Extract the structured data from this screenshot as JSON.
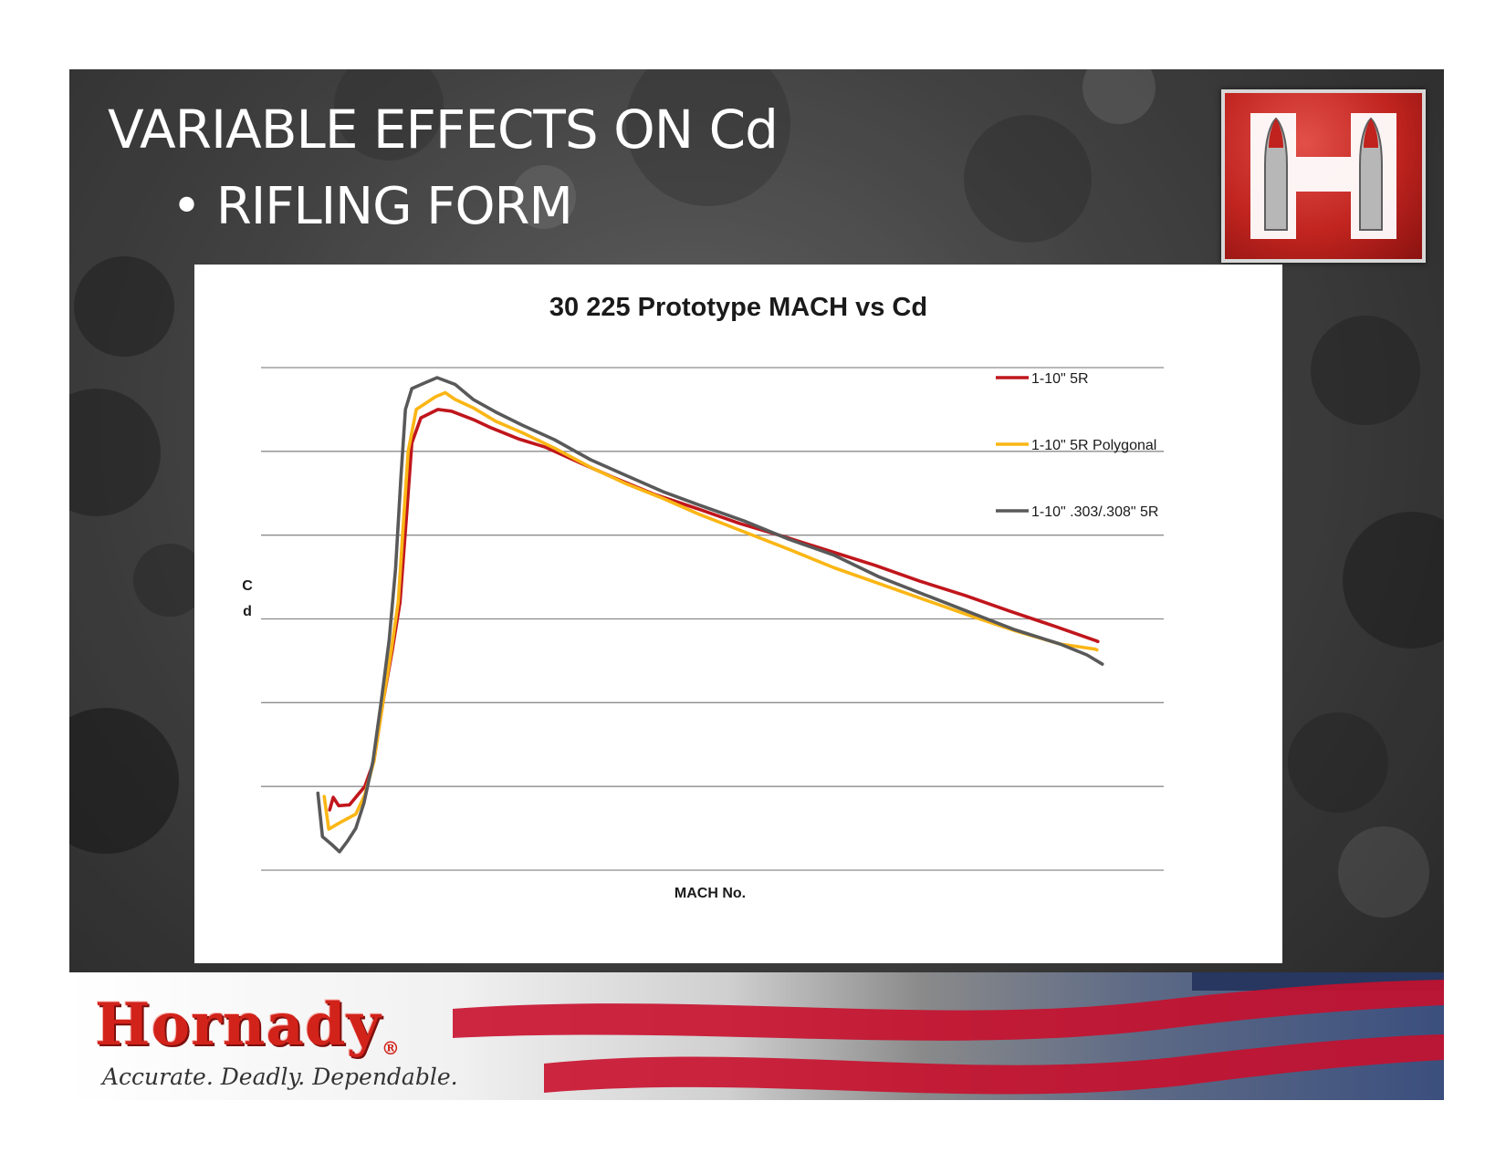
{
  "slide": {
    "title": "VARIABLE EFFECTS ON Cd",
    "bullet": "• RIFLING FORM"
  },
  "branding": {
    "logo_icon": "hornady-h-bullets-icon",
    "brand_name": "Hornady",
    "registered": "®",
    "tagline": "Accurate. Deadly. Dependable.",
    "flag_icon": "american-flag-icon"
  },
  "colors": {
    "brand_red": "#d2231b",
    "series_red": "#c0161c",
    "series_yellow": "#fbb615",
    "series_gray": "#595959",
    "gridline": "#8c8c8c"
  },
  "chart_data": {
    "type": "line",
    "title": "30 225 Prototype MACH vs Cd",
    "xlabel": "MACH No.",
    "ylabel": "Cd",
    "ylim": [
      0,
      6
    ],
    "yticks": [
      0,
      1,
      2,
      3,
      4,
      5,
      6
    ],
    "xlim": [
      0,
      100
    ],
    "grid": true,
    "legend_position": "right",
    "series": [
      {
        "name": "1-10\" 5R",
        "color": "#c0161c",
        "points": [
          [
            7.6,
            0.72
          ],
          [
            8.0,
            0.87
          ],
          [
            8.6,
            0.77
          ],
          [
            9.8,
            0.78
          ],
          [
            11.5,
            1.0
          ],
          [
            12.5,
            1.3
          ],
          [
            13.5,
            2.0
          ],
          [
            14.5,
            2.6
          ],
          [
            15.4,
            3.2
          ],
          [
            16.1,
            4.2
          ],
          [
            16.7,
            5.1
          ],
          [
            17.7,
            5.4
          ],
          [
            19.6,
            5.5
          ],
          [
            21.1,
            5.48
          ],
          [
            23.5,
            5.38
          ],
          [
            25.5,
            5.28
          ],
          [
            28.5,
            5.15
          ],
          [
            31.5,
            5.05
          ],
          [
            35.0,
            4.88
          ],
          [
            39.0,
            4.69
          ],
          [
            43.5,
            4.49
          ],
          [
            48.5,
            4.31
          ],
          [
            53.0,
            4.14
          ],
          [
            58.0,
            3.98
          ],
          [
            63.0,
            3.81
          ],
          [
            68.0,
            3.64
          ],
          [
            73.0,
            3.45
          ],
          [
            78.0,
            3.28
          ],
          [
            83.0,
            3.09
          ],
          [
            88.0,
            2.91
          ],
          [
            92.5,
            2.74
          ],
          [
            92.7,
            2.73
          ]
        ]
      },
      {
        "name": "1-10\" 5R Polygonal",
        "color": "#fbb615",
        "points": [
          [
            7.0,
            0.88
          ],
          [
            7.5,
            0.49
          ],
          [
            8.6,
            0.56
          ],
          [
            10.5,
            0.67
          ],
          [
            11.5,
            0.9
          ],
          [
            12.5,
            1.3
          ],
          [
            13.5,
            2.0
          ],
          [
            14.4,
            2.6
          ],
          [
            15.2,
            3.2
          ],
          [
            15.8,
            4.2
          ],
          [
            16.3,
            5.0
          ],
          [
            17.2,
            5.5
          ],
          [
            19.3,
            5.65
          ],
          [
            20.4,
            5.7
          ],
          [
            21.5,
            5.62
          ],
          [
            23.5,
            5.52
          ],
          [
            26.0,
            5.36
          ],
          [
            29.0,
            5.22
          ],
          [
            32.5,
            5.04
          ],
          [
            36.5,
            4.81
          ],
          [
            40.5,
            4.61
          ],
          [
            44.5,
            4.44
          ],
          [
            48.5,
            4.25
          ],
          [
            53.5,
            4.04
          ],
          [
            58.5,
            3.83
          ],
          [
            63.5,
            3.61
          ],
          [
            68.5,
            3.42
          ],
          [
            73.5,
            3.23
          ],
          [
            78.5,
            3.04
          ],
          [
            83.5,
            2.86
          ],
          [
            88.5,
            2.7
          ],
          [
            92.4,
            2.64
          ],
          [
            92.6,
            2.63
          ]
        ]
      },
      {
        "name": "1-10\" .303/.308\" 5R",
        "color": "#595959",
        "points": [
          [
            6.3,
            0.92
          ],
          [
            6.8,
            0.4
          ],
          [
            7.8,
            0.31
          ],
          [
            8.7,
            0.22
          ],
          [
            9.6,
            0.35
          ],
          [
            10.5,
            0.5
          ],
          [
            11.4,
            0.8
          ],
          [
            12.4,
            1.3
          ],
          [
            13.3,
            2.0
          ],
          [
            14.2,
            2.75
          ],
          [
            14.9,
            3.6
          ],
          [
            15.5,
            4.7
          ],
          [
            16.0,
            5.5
          ],
          [
            16.7,
            5.75
          ],
          [
            18.2,
            5.82
          ],
          [
            19.5,
            5.88
          ],
          [
            21.5,
            5.8
          ],
          [
            23.5,
            5.62
          ],
          [
            26.0,
            5.47
          ],
          [
            29.0,
            5.31
          ],
          [
            32.5,
            5.14
          ],
          [
            36.5,
            4.9
          ],
          [
            40.5,
            4.71
          ],
          [
            44.5,
            4.52
          ],
          [
            48.5,
            4.36
          ],
          [
            53.5,
            4.17
          ],
          [
            58.5,
            3.95
          ],
          [
            63.5,
            3.76
          ],
          [
            68.5,
            3.5
          ],
          [
            73.5,
            3.29
          ],
          [
            78.5,
            3.08
          ],
          [
            83.5,
            2.87
          ],
          [
            88.5,
            2.7
          ],
          [
            91.5,
            2.57
          ],
          [
            93.2,
            2.46
          ]
        ]
      }
    ]
  }
}
